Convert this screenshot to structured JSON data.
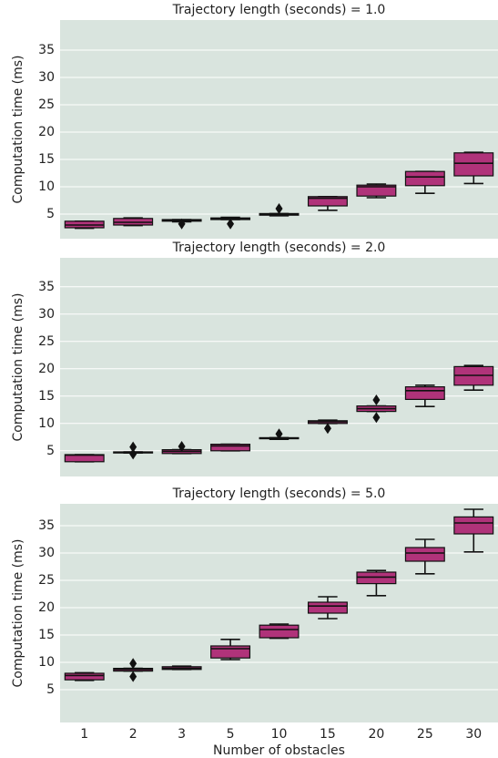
{
  "chart_data": [
    {
      "type": "box",
      "title": "Trajectory length (seconds) = 1.0",
      "ylabel": "Computation time (ms)",
      "color": "#b0337a",
      "grid": true,
      "ylim": [
        0.5,
        40.5
      ],
      "yticks": [
        5,
        10,
        15,
        20,
        25,
        30,
        35
      ],
      "boxes": [
        {
          "low": 2.4,
          "q1": 2.5,
          "median": 3.0,
          "q3": 3.7,
          "high": 3.7,
          "outliers": []
        },
        {
          "low": 2.9,
          "q1": 3.0,
          "median": 3.5,
          "q3": 4.2,
          "high": 4.3,
          "outliers": []
        },
        {
          "low": 3.6,
          "q1": 3.7,
          "median": 3.8,
          "q3": 4.0,
          "high": 4.0,
          "outliers": [
            3.2
          ]
        },
        {
          "low": 4.0,
          "q1": 4.0,
          "median": 4.2,
          "q3": 4.3,
          "high": 4.4,
          "outliers": [
            3.2
          ]
        },
        {
          "low": 4.7,
          "q1": 4.8,
          "median": 4.9,
          "q3": 5.1,
          "high": 5.1,
          "outliers": [
            6.0
          ]
        },
        {
          "low": 5.7,
          "q1": 6.5,
          "median": 7.9,
          "q3": 8.2,
          "high": 8.2,
          "outliers": []
        },
        {
          "low": 8.0,
          "q1": 8.3,
          "median": 10.0,
          "q3": 10.3,
          "high": 10.5,
          "outliers": []
        },
        {
          "low": 8.8,
          "q1": 10.2,
          "median": 11.8,
          "q3": 12.8,
          "high": 12.8,
          "outliers": []
        },
        {
          "low": 10.6,
          "q1": 12.0,
          "median": 14.3,
          "q3": 16.2,
          "high": 16.3,
          "outliers": []
        }
      ]
    },
    {
      "type": "box",
      "title": "Trajectory length (seconds) = 2.0",
      "ylabel": "Computation time (ms)",
      "color": "#b0337a",
      "grid": true,
      "ylim": [
        0.3,
        40.3
      ],
      "yticks": [
        5,
        10,
        15,
        20,
        25,
        30,
        35
      ],
      "boxes": [
        {
          "low": 3.0,
          "q1": 3.0,
          "median": 4.2,
          "q3": 4.3,
          "high": 4.3,
          "outliers": []
        },
        {
          "low": 4.6,
          "q1": 4.6,
          "median": 4.7,
          "q3": 4.8,
          "high": 4.8,
          "outliers": [
            5.7,
            4.4
          ]
        },
        {
          "low": 4.5,
          "q1": 4.5,
          "median": 4.9,
          "q3": 5.2,
          "high": 5.2,
          "outliers": [
            5.8
          ]
        },
        {
          "low": 5.0,
          "q1": 5.0,
          "median": 5.9,
          "q3": 6.2,
          "high": 6.2,
          "outliers": []
        },
        {
          "low": 7.1,
          "q1": 7.2,
          "median": 7.3,
          "q3": 7.4,
          "high": 7.4,
          "outliers": [
            8.1
          ]
        },
        {
          "low": 10.0,
          "q1": 10.0,
          "median": 10.3,
          "q3": 10.5,
          "high": 10.6,
          "outliers": [
            9.1
          ]
        },
        {
          "low": 12.2,
          "q1": 12.2,
          "median": 12.7,
          "q3": 13.2,
          "high": 13.2,
          "outliers": [
            14.3,
            11.1
          ]
        },
        {
          "low": 13.1,
          "q1": 14.4,
          "median": 16.0,
          "q3": 16.7,
          "high": 17.0,
          "outliers": []
        },
        {
          "low": 16.1,
          "q1": 17.0,
          "median": 18.8,
          "q3": 20.4,
          "high": 20.6,
          "outliers": []
        }
      ]
    },
    {
      "type": "box",
      "title": "Trajectory length (seconds) = 5.0",
      "ylabel": "Computation time (ms)",
      "xlabel": "Number of obstacles",
      "color": "#b0337a",
      "grid": true,
      "categories": [
        "1",
        "2",
        "3",
        "5",
        "10",
        "15",
        "20",
        "25",
        "30"
      ],
      "ylim": [
        -1,
        39
      ],
      "yticks": [
        5,
        10,
        15,
        20,
        25,
        30,
        35
      ],
      "boxes": [
        {
          "low": 6.7,
          "q1": 6.8,
          "median": 7.6,
          "q3": 8.0,
          "high": 8.1,
          "outliers": []
        },
        {
          "low": 8.4,
          "q1": 8.4,
          "median": 8.7,
          "q3": 8.9,
          "high": 8.9,
          "outliers": [
            9.8,
            7.4
          ]
        },
        {
          "low": 8.7,
          "q1": 8.7,
          "median": 8.9,
          "q3": 9.2,
          "high": 9.3,
          "outliers": []
        },
        {
          "low": 10.5,
          "q1": 10.8,
          "median": 12.5,
          "q3": 13.0,
          "high": 14.2,
          "outliers": []
        },
        {
          "low": 14.4,
          "q1": 14.5,
          "median": 16.0,
          "q3": 16.8,
          "high": 17.0,
          "outliers": []
        },
        {
          "low": 18.0,
          "q1": 19.0,
          "median": 20.3,
          "q3": 21.0,
          "high": 22.0,
          "outliers": []
        },
        {
          "low": 22.2,
          "q1": 24.4,
          "median": 25.6,
          "q3": 26.5,
          "high": 26.8,
          "outliers": []
        },
        {
          "low": 26.2,
          "q1": 28.5,
          "median": 30.0,
          "q3": 31.0,
          "high": 32.5,
          "outliers": []
        },
        {
          "low": 30.2,
          "q1": 33.5,
          "median": 35.5,
          "q3": 36.6,
          "high": 38.0,
          "outliers": []
        }
      ]
    }
  ]
}
